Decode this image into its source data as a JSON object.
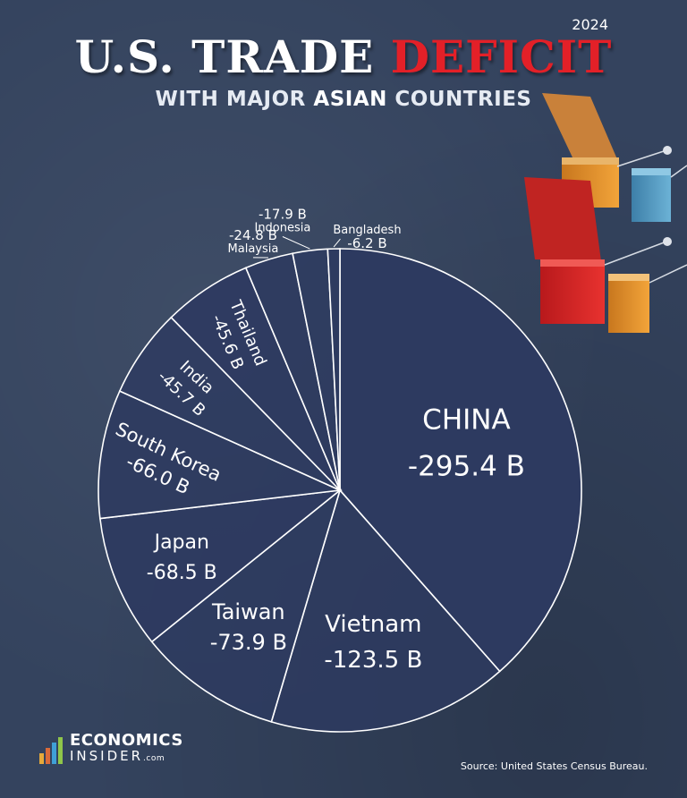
{
  "header": {
    "year": "2024",
    "title_main": "U.S. TRADE",
    "title_accent": "DEFICIT",
    "subtitle_pre": "WITH MAJOR",
    "subtitle_bold": "ASIAN",
    "subtitle_post": "COUNTRIES"
  },
  "colors": {
    "background": "#34435e",
    "accent": "#e32028",
    "slice_fill": "#2d3a60",
    "slice_stroke": "#ffffff"
  },
  "chart_data": {
    "type": "pie",
    "title": "U.S. TRADE DEFICIT WITH MAJOR ASIAN COUNTRIES",
    "unit": "B",
    "slices": [
      {
        "country": "CHINA",
        "value": -295.4,
        "value_label": "-295.4 B"
      },
      {
        "country": "Vietnam",
        "value": -123.5,
        "value_label": "-123.5 B"
      },
      {
        "country": "Taiwan",
        "value": -73.9,
        "value_label": "-73.9 B"
      },
      {
        "country": "Japan",
        "value": -68.5,
        "value_label": "-68.5 B"
      },
      {
        "country": "South Korea",
        "value": -66.0,
        "value_label": "-66.0 B"
      },
      {
        "country": "India",
        "value": -45.7,
        "value_label": "-45.7 B"
      },
      {
        "country": "Thailand",
        "value": -45.6,
        "value_label": "-45.6 B"
      },
      {
        "country": "Malaysia",
        "value": -24.8,
        "value_label": "-24.8 B"
      },
      {
        "country": "Indonesia",
        "value": -17.9,
        "value_label": "-17.9 B"
      },
      {
        "country": "Bangladesh",
        "value": -6.2,
        "value_label": "-6.2 B"
      }
    ]
  },
  "footer": {
    "brand_line1": "ECONOMICS",
    "brand_line2": "INSIDER",
    "brand_suffix": ".com",
    "source": "Source: United States Census Bureau."
  }
}
